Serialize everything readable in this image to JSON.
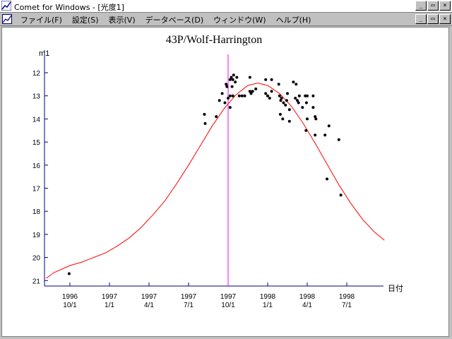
{
  "window": {
    "title": "Comet for Windows - [光度1]",
    "minimize_label": "_",
    "restore_label": "▭",
    "close_label": "×"
  },
  "menu": {
    "items": [
      {
        "label": "ファイル(F)"
      },
      {
        "label": "設定(S)"
      },
      {
        "label": "表示(V)"
      },
      {
        "label": "データベース(D)"
      },
      {
        "label": "ウィンドウ(W)"
      },
      {
        "label": "ヘルプ(H)"
      }
    ]
  },
  "chart_data": {
    "type": "scatter",
    "title": "43P/Wolf-Harrington",
    "ylabel": "m1",
    "xlabel": "日付",
    "y_inverted": true,
    "ylim": [
      21,
      12
    ],
    "y_ticks": [
      12,
      13,
      14,
      15,
      16,
      17,
      18,
      19,
      20,
      21
    ],
    "x_ticks": [
      {
        "year": "1996",
        "date": "10/1"
      },
      {
        "year": "1997",
        "date": "1/1"
      },
      {
        "year": "1997",
        "date": "4/1"
      },
      {
        "year": "1997",
        "date": "7/1"
      },
      {
        "year": "1997",
        "date": "10/1"
      },
      {
        "year": "1998",
        "date": "1/1"
      },
      {
        "year": "1998",
        "date": "4/1"
      },
      {
        "year": "1998",
        "date": "7/1"
      }
    ],
    "perihelion_marker": "1997-10-1",
    "colors": {
      "curve": "#ff0000",
      "points": "#000000",
      "marker": "#ff00ff",
      "axis": "#000080"
    },
    "observations": [
      {
        "x": -0.02,
        "y": 20.7
      },
      {
        "x": 3.4,
        "y": 13.8
      },
      {
        "x": 3.42,
        "y": 14.2
      },
      {
        "x": 3.7,
        "y": 13.9
      },
      {
        "x": 3.78,
        "y": 13.2
      },
      {
        "x": 3.85,
        "y": 12.9
      },
      {
        "x": 3.92,
        "y": 13.3
      },
      {
        "x": 3.95,
        "y": 12.5
      },
      {
        "x": 3.97,
        "y": 12.6
      },
      {
        "x": 4.05,
        "y": 13.0
      },
      {
        "x": 4.05,
        "y": 13.5
      },
      {
        "x": 4.1,
        "y": 12.6
      },
      {
        "x": 4.0,
        "y": 13.1
      },
      {
        "x": 4.12,
        "y": 13.0
      },
      {
        "x": 4.05,
        "y": 12.3
      },
      {
        "x": 4.08,
        "y": 12.2
      },
      {
        "x": 4.12,
        "y": 12.3
      },
      {
        "x": 4.14,
        "y": 12.1
      },
      {
        "x": 4.18,
        "y": 12.4
      },
      {
        "x": 4.22,
        "y": 12.2
      },
      {
        "x": 4.28,
        "y": 13.0
      },
      {
        "x": 4.35,
        "y": 13.0
      },
      {
        "x": 4.42,
        "y": 13.0
      },
      {
        "x": 4.55,
        "y": 12.2
      },
      {
        "x": 4.58,
        "y": 12.9
      },
      {
        "x": 4.62,
        "y": 12.8
      },
      {
        "x": 4.7,
        "y": 12.7
      },
      {
        "x": 4.55,
        "y": 12.8
      },
      {
        "x": 4.95,
        "y": 12.3
      },
      {
        "x": 5.1,
        "y": 12.3
      },
      {
        "x": 4.95,
        "y": 12.9
      },
      {
        "x": 5.0,
        "y": 13.0
      },
      {
        "x": 5.1,
        "y": 12.8
      },
      {
        "x": 5.05,
        "y": 13.1
      },
      {
        "x": 5.28,
        "y": 12.5
      },
      {
        "x": 5.3,
        "y": 13.0
      },
      {
        "x": 5.33,
        "y": 13.2
      },
      {
        "x": 5.35,
        "y": 13.1
      },
      {
        "x": 5.32,
        "y": 13.8
      },
      {
        "x": 5.38,
        "y": 14.0
      },
      {
        "x": 5.4,
        "y": 13.3
      },
      {
        "x": 5.45,
        "y": 13.4
      },
      {
        "x": 5.5,
        "y": 12.9
      },
      {
        "x": 5.48,
        "y": 13.2
      },
      {
        "x": 5.55,
        "y": 13.6
      },
      {
        "x": 5.55,
        "y": 14.1
      },
      {
        "x": 5.65,
        "y": 12.4
      },
      {
        "x": 5.72,
        "y": 12.5
      },
      {
        "x": 5.7,
        "y": 13.1
      },
      {
        "x": 5.75,
        "y": 13.2
      },
      {
        "x": 5.78,
        "y": 13.3
      },
      {
        "x": 5.8,
        "y": 13.0
      },
      {
        "x": 5.88,
        "y": 13.5
      },
      {
        "x": 5.95,
        "y": 13.0
      },
      {
        "x": 6.0,
        "y": 13.0
      },
      {
        "x": 5.98,
        "y": 13.3
      },
      {
        "x": 6.0,
        "y": 14.0
      },
      {
        "x": 5.97,
        "y": 14.5
      },
      {
        "x": 6.15,
        "y": 13.0
      },
      {
        "x": 6.15,
        "y": 13.5
      },
      {
        "x": 6.2,
        "y": 13.9
      },
      {
        "x": 6.22,
        "y": 14.0
      },
      {
        "x": 6.2,
        "y": 14.7
      },
      {
        "x": 6.45,
        "y": 14.7
      },
      {
        "x": 6.55,
        "y": 14.3
      },
      {
        "x": 6.5,
        "y": 16.6
      },
      {
        "x": 6.8,
        "y": 14.9
      },
      {
        "x": 6.85,
        "y": 17.3
      }
    ],
    "model_curve": [
      {
        "x": -0.6,
        "y": 20.9
      },
      {
        "x": -0.4,
        "y": 20.65
      },
      {
        "x": -0.2,
        "y": 20.5
      },
      {
        "x": 0.0,
        "y": 20.35
      },
      {
        "x": 0.3,
        "y": 20.2
      },
      {
        "x": 0.6,
        "y": 20.0
      },
      {
        "x": 0.9,
        "y": 19.8
      },
      {
        "x": 1.2,
        "y": 19.5
      },
      {
        "x": 1.5,
        "y": 19.15
      },
      {
        "x": 1.8,
        "y": 18.7
      },
      {
        "x": 2.1,
        "y": 18.15
      },
      {
        "x": 2.4,
        "y": 17.55
      },
      {
        "x": 2.7,
        "y": 16.8
      },
      {
        "x": 3.0,
        "y": 16.0
      },
      {
        "x": 3.3,
        "y": 15.15
      },
      {
        "x": 3.6,
        "y": 14.3
      },
      {
        "x": 3.9,
        "y": 13.55
      },
      {
        "x": 4.2,
        "y": 12.95
      },
      {
        "x": 4.5,
        "y": 12.55
      },
      {
        "x": 4.75,
        "y": 12.45
      },
      {
        "x": 5.0,
        "y": 12.55
      },
      {
        "x": 5.3,
        "y": 12.9
      },
      {
        "x": 5.6,
        "y": 13.45
      },
      {
        "x": 5.9,
        "y": 14.2
      },
      {
        "x": 6.2,
        "y": 15.05
      },
      {
        "x": 6.5,
        "y": 15.95
      },
      {
        "x": 6.8,
        "y": 16.85
      },
      {
        "x": 7.1,
        "y": 17.65
      },
      {
        "x": 7.4,
        "y": 18.35
      },
      {
        "x": 7.7,
        "y": 18.9
      },
      {
        "x": 7.95,
        "y": 19.25
      }
    ]
  }
}
